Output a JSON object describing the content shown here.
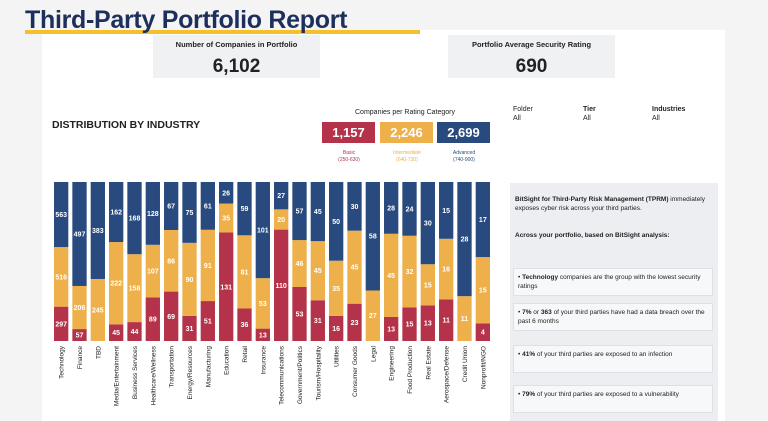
{
  "header": {
    "title": "Third-Party Portfolio Report"
  },
  "kpis": [
    {
      "label": "Number of Companies in Portfolio",
      "value": "6,102"
    },
    {
      "label": "Portfolio Average Security Rating",
      "value": "690"
    }
  ],
  "rating_categories": {
    "title": "Companies per Rating Category",
    "items": [
      {
        "count": "1,157",
        "name": "Basic",
        "range": "(250-630)",
        "color": "#b5334a"
      },
      {
        "count": "2,246",
        "name": "Intermediate",
        "range": "(640-730)",
        "color": "#eeb04a"
      },
      {
        "count": "2,699",
        "name": "Advanced",
        "range": "(740-900)",
        "color": "#284a7e"
      }
    ]
  },
  "filters": [
    {
      "label": "Folder",
      "value": "All"
    },
    {
      "label": "Tier",
      "value": "All"
    },
    {
      "label": "Industries",
      "value": "All"
    }
  ],
  "chart_data": {
    "type": "bar",
    "stacked": true,
    "normalized": true,
    "title": "DISTRIBUTION BY INDUSTRY",
    "categories": [
      "Technology",
      "Finance",
      "TBD",
      "Media/Entertainment",
      "Business Services",
      "Healthcare/Wellness",
      "Transportation",
      "Energy/Resources",
      "Manufacturing",
      "Education",
      "Retail",
      "Insurance",
      "Telecommunications",
      "Government/Politics",
      "Tourism/Hospitality",
      "Utilities",
      "Consumer Goods",
      "Legal",
      "Engineering",
      "Food Production",
      "Real Estate",
      "Aerospace/Defense",
      "Credit Union",
      "Nonprofit/NGO"
    ],
    "series": [
      {
        "name": "Basic",
        "color": "#b5334a",
        "values": [
          297,
          57,
          null,
          45,
          44,
          89,
          69,
          31,
          51,
          131,
          36,
          13,
          110,
          53,
          31,
          16,
          23,
          null,
          13,
          15,
          13,
          11,
          null,
          4
        ]
      },
      {
        "name": "Intermediate",
        "color": "#eeb04a",
        "values": [
          516,
          206,
          245,
          222,
          158,
          107,
          86,
          90,
          91,
          35,
          81,
          53,
          20,
          46,
          45,
          35,
          45,
          27,
          45,
          32,
          15,
          16,
          11,
          15
        ]
      },
      {
        "name": "Advanced",
        "color": "#284a7e",
        "values": [
          563,
          497,
          383,
          162,
          168,
          128,
          67,
          75,
          61,
          26,
          59,
          101,
          27,
          57,
          45,
          50,
          30,
          58,
          28,
          24,
          30,
          15,
          28,
          17
        ]
      }
    ]
  },
  "panel": {
    "intro": [
      {
        "text": "BitSight for Third-Party Risk Management (TPRM)",
        "bold": true
      },
      {
        "text": " immediately exposes cyber risk across your third parties."
      }
    ],
    "lead": "Across your portfolio, based on BitSight analysis:",
    "insights": [
      [
        {
          "text": "• "
        },
        {
          "text": "Technology",
          "bold": true
        },
        {
          "text": " companies are the group with the lowest security ratings"
        }
      ],
      [
        {
          "text": "• "
        },
        {
          "text": "7%",
          "bold": true
        },
        {
          "text": " or "
        },
        {
          "text": "363",
          "bold": true
        },
        {
          "text": " of your third parties have had a data breach over the past 6 months"
        }
      ],
      [
        {
          "text": "• "
        },
        {
          "text": "41%",
          "bold": true
        },
        {
          "text": " of your third parties are exposed to an infection"
        }
      ],
      [
        {
          "text": "• "
        },
        {
          "text": "79%",
          "bold": true
        },
        {
          "text": " of your third parties are exposed to a vulnerability"
        }
      ]
    ]
  }
}
